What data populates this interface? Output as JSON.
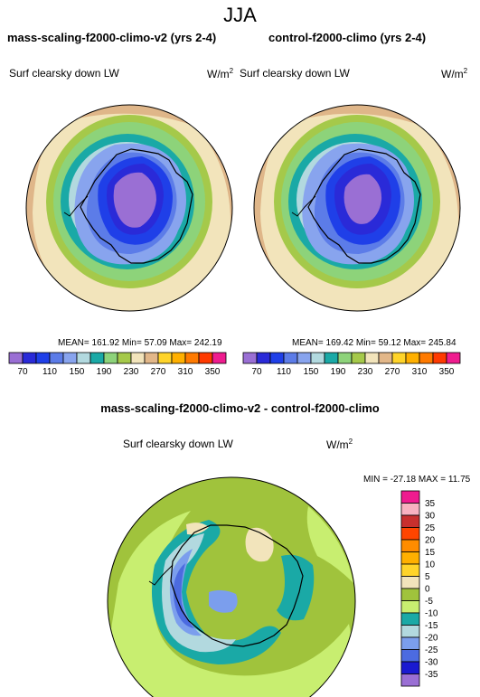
{
  "title": "JJA",
  "panels": [
    {
      "title": "mass-scaling-f2000-climo-v2 (yrs 2-4)",
      "variable": "Surf clearsky down LW",
      "units_base": "W/m",
      "units_exp": "2",
      "stats": "MEAN= 161.92  Min=  57.09  Max= 242.19"
    },
    {
      "title": "control-f2000-climo (yrs 2-4)",
      "variable": "Surf clearsky down LW",
      "units_base": "W/m",
      "units_exp": "2",
      "stats": "MEAN= 169.42  Min=  59.12  Max= 245.84"
    }
  ],
  "colorbar_top": {
    "labels": [
      "70",
      "110",
      "150",
      "190",
      "230",
      "270",
      "310",
      "350"
    ],
    "colors": [
      "#9a6fd4",
      "#2a2ad8",
      "#1f3fe8",
      "#5c7ce8",
      "#88a4ee",
      "#b2d9df",
      "#1aa9a6",
      "#8dd37a",
      "#a5c94a",
      "#f2e4bb",
      "#e2b789",
      "#ffd42a",
      "#ffb000",
      "#ff7a00",
      "#ff3a00",
      "#ef1c8f"
    ]
  },
  "diff": {
    "title": "mass-scaling-f2000-climo-v2 - control-f2000-climo",
    "variable": "Surf clearsky down LW",
    "units_base": "W/m",
    "units_exp": "2",
    "stats": "MIN = -27.18 MAX =  11.75",
    "colorbar_labels": [
      "35",
      "30",
      "25",
      "20",
      "15",
      "10",
      "5",
      "0",
      "-5",
      "-10",
      "-15",
      "-20",
      "-25",
      "-30",
      "-35"
    ],
    "colorbar_colors": [
      "#ef1c8f",
      "#f8b2c0",
      "#c8302e",
      "#ff4500",
      "#ff8c00",
      "#ffb000",
      "#ffd42a",
      "#f2e4bb",
      "#a0c33c",
      "#c8ee70",
      "#1aa9a6",
      "#b2d9df",
      "#7b9eed",
      "#4c6be0",
      "#1a1ad0",
      "#9a6fd4"
    ]
  }
}
